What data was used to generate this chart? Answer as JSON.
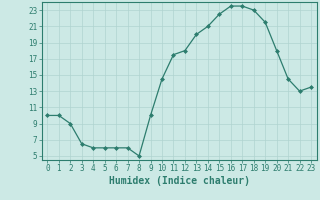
{
  "x": [
    0,
    1,
    2,
    3,
    4,
    5,
    6,
    7,
    8,
    9,
    10,
    11,
    12,
    13,
    14,
    15,
    16,
    17,
    18,
    19,
    20,
    21,
    22,
    23
  ],
  "y": [
    10,
    10,
    9,
    6.5,
    6,
    6,
    6,
    6,
    5,
    10,
    14.5,
    17.5,
    18,
    20,
    21,
    22.5,
    23.5,
    23.5,
    23,
    21.5,
    18,
    14.5,
    13,
    13.5
  ],
  "xlabel": "Humidex (Indice chaleur)",
  "xlim_min": -0.5,
  "xlim_max": 23.5,
  "ylim_min": 4.5,
  "ylim_max": 24.0,
  "yticks": [
    5,
    7,
    9,
    11,
    13,
    15,
    17,
    19,
    21,
    23
  ],
  "xticks": [
    0,
    1,
    2,
    3,
    4,
    5,
    6,
    7,
    8,
    9,
    10,
    11,
    12,
    13,
    14,
    15,
    16,
    17,
    18,
    19,
    20,
    21,
    22,
    23
  ],
  "line_color": "#2d7d6e",
  "marker": "D",
  "marker_size": 2.0,
  "bg_color": "#cce9e5",
  "grid_color": "#b0d4d0",
  "axis_color": "#2d7d6e",
  "tick_color": "#2d7d6e",
  "tick_fontsize": 5.5,
  "xlabel_fontsize": 7.0
}
